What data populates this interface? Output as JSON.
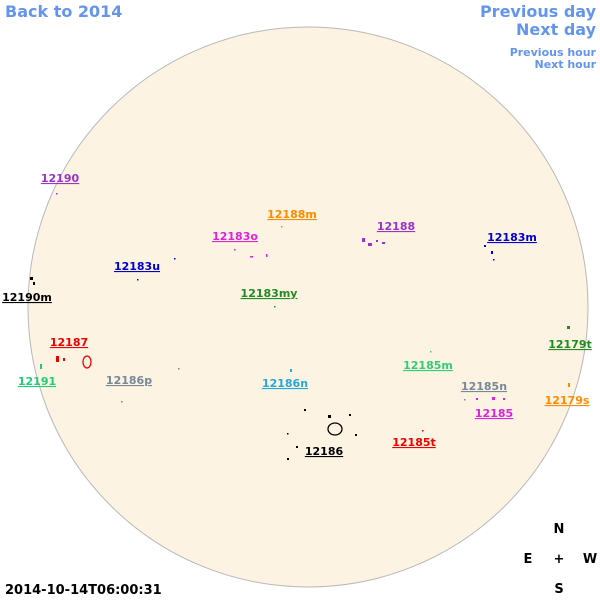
{
  "navigation": {
    "back": "Back to 2014",
    "previous_day": "Previous day",
    "next_day": "Next day",
    "previous_hour": "Previous hour",
    "next_hour": "Next hour"
  },
  "regions": [
    {
      "label": "12190",
      "color": "#9933cc"
    },
    {
      "label": "12188m",
      "color": "#ff8c00"
    },
    {
      "label": "12188",
      "color": "#9933cc"
    },
    {
      "label": "12183o",
      "color": "#dd22dd"
    },
    {
      "label": "12183m",
      "color": "#0000cc"
    },
    {
      "label": "12183u",
      "color": "#0000cc"
    },
    {
      "label": "12190m",
      "color": "#000000"
    },
    {
      "label": "12183my",
      "color": "#228b22"
    },
    {
      "label": "12187",
      "color": "#ee0000"
    },
    {
      "label": "12179t",
      "color": "#228b22"
    },
    {
      "label": "12185m",
      "color": "#33cc77"
    },
    {
      "label": "12191",
      "color": "#22cc77"
    },
    {
      "label": "12186p",
      "color": "#778899"
    },
    {
      "label": "12186n",
      "color": "#22aadd"
    },
    {
      "label": "12185n",
      "color": "#778899"
    },
    {
      "label": "12179s",
      "color": "#ff8c00"
    },
    {
      "label": "12185",
      "color": "#dd22dd"
    },
    {
      "label": "12185t",
      "color": "#ee0000"
    },
    {
      "label": "12186",
      "color": "#000000"
    }
  ],
  "compass": {
    "north": "N",
    "east": "E",
    "center": "+",
    "west": "W",
    "south": "S"
  },
  "timestamp": "2014-10-14T06:00:31"
}
